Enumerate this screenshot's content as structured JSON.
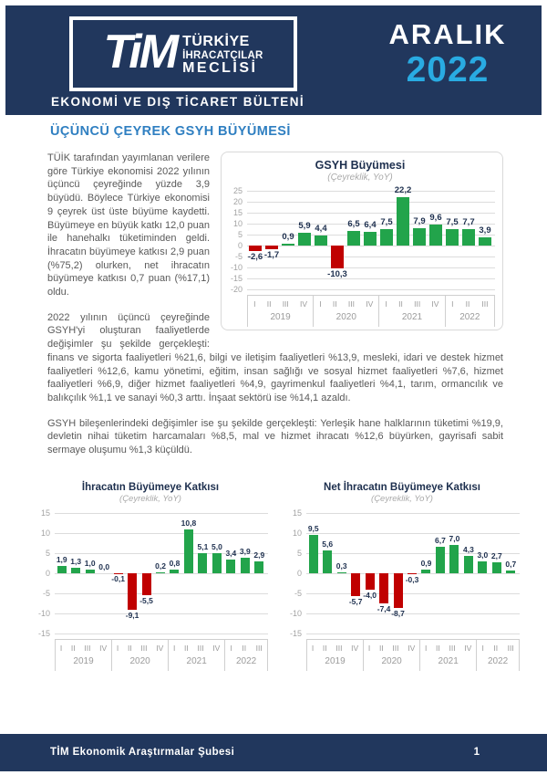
{
  "colors": {
    "navy": "#21375d",
    "cyan": "#29abe2",
    "section_blue": "#2f7fc1",
    "green": "#22a44b",
    "red": "#c00000"
  },
  "header": {
    "logo_acronym": "TiM",
    "logo_line1": "TÜRKİYE",
    "logo_line2": "İHRACATÇILAR",
    "logo_line3": "MECLİSİ",
    "bulletin_title": "EKONOMİ VE DIŞ TİCARET BÜLTENİ",
    "issue_month": "ARALIK",
    "issue_year": "2022"
  },
  "section": {
    "title": "ÜÇÜNCÜ ÇEYREK GSYH BÜYÜMESİ",
    "paragraph1": "TÜİK tarafından yayımlanan verilere göre Türkiye ekonomisi 2022 yılının üçüncü çeyreğinde yüzde 3,9 büyüdü. Böylece Türkiye ekonomisi 9 çeyrek üst üste büyüme kaydetti. Büyümeye en büyük katkı 12,0 puan ile hanehalkı tüketiminden geldi. İhracatın büyümeye katkısı 2,9 puan (%75,2) olurken, net ihracatın büyümeye katkısı 0,7 puan (%17,1) oldu.",
    "paragraph2": "2022 yılının üçüncü çeyreğinde GSYH'yi oluşturan faaliyetlerde değişimler şu şekilde gerçekleşti: finans ve sigorta faaliyetleri %21,6, bilgi ve iletişim faaliyetleri %13,9, mesleki, idari ve destek hizmet faaliyetleri %12,6, kamu yönetimi, eğitim, insan sağlığı ve sosyal hizmet faaliyetleri %7,6, hizmet faaliyetleri %6,9, diğer hizmet faaliyetleri %4,9, gayrimenkul faaliyetleri %4,1, tarım, ormancılık ve balıkçılık %1,1 ve sanayi %0,3 arttı. İnşaat sektörü ise %14,1 azaldı.",
    "paragraph3": "GSYH bileşenlerindeki değişimler ise şu şekilde gerçekleşti: Yerleşik hane halklarının tüketimi %19,9, devletin nihai tüketim harcamaları %8,5, mal ve hizmet ihracatı %12,6 büyürken, gayrisafi sabit sermaye oluşumu %1,3 küçüldü."
  },
  "footer": {
    "text": "TİM Ekonomik Araştırmalar Şubesi",
    "page_number": "1"
  },
  "chart_data": [
    {
      "type": "bar",
      "title": "GSYH Büyümesi",
      "subtitle": "(Çeyreklik, YoY)",
      "ylabel": "",
      "xlabel": "",
      "ylim": [
        -20,
        25
      ],
      "ystep": 5,
      "grid": true,
      "groups": [
        {
          "year": "2019",
          "quarters": [
            "I",
            "II",
            "III",
            "IV"
          ]
        },
        {
          "year": "2020",
          "quarters": [
            "I",
            "II",
            "III",
            "IV"
          ]
        },
        {
          "year": "2021",
          "quarters": [
            "I",
            "II",
            "III",
            "IV"
          ]
        },
        {
          "year": "2022",
          "quarters": [
            "I",
            "II",
            "III"
          ]
        }
      ],
      "values": [
        -2.6,
        -1.7,
        0.9,
        5.9,
        4.4,
        -10.3,
        6.5,
        6.4,
        7.5,
        22.2,
        7.9,
        9.6,
        7.5,
        7.7,
        3.9
      ],
      "value_labels": [
        "-2,6",
        "-1,7",
        "0,9",
        "5,9",
        "4,4",
        "-10,3",
        "6,5",
        "6,4",
        "7,5",
        "22,2",
        "7,9",
        "9,6",
        "7,5",
        "7,7",
        "3,9"
      ],
      "bar_colors": {
        "positive": "#22a44b",
        "negative": "#c00000"
      }
    },
    {
      "type": "bar",
      "title": "İhracatın Büyümeye Katkısı",
      "subtitle": "(Çeyreklik, YoY)",
      "ylabel": "",
      "xlabel": "",
      "ylim": [
        -15,
        15
      ],
      "ystep": 5,
      "grid": true,
      "groups": [
        {
          "year": "2019",
          "quarters": [
            "I",
            "II",
            "III",
            "IV"
          ]
        },
        {
          "year": "2020",
          "quarters": [
            "I",
            "II",
            "III",
            "IV"
          ]
        },
        {
          "year": "2021",
          "quarters": [
            "I",
            "II",
            "III",
            "IV"
          ]
        },
        {
          "year": "2022",
          "quarters": [
            "I",
            "II",
            "III"
          ]
        }
      ],
      "values": [
        1.9,
        1.3,
        1.0,
        0.0,
        -0.1,
        -9.1,
        -5.5,
        0.2,
        0.8,
        10.8,
        5.1,
        5.0,
        3.4,
        3.9,
        2.9
      ],
      "value_labels": [
        "1,9",
        "1,3",
        "1,0",
        "0,0",
        "-0,1",
        "-9,1",
        "-5,5",
        "0,2",
        "0,8",
        "10,8",
        "5,1",
        "5,0",
        "3,4",
        "3,9",
        "2,9"
      ],
      "bar_colors": {
        "positive": "#22a44b",
        "negative": "#c00000"
      }
    },
    {
      "type": "bar",
      "title": "Net İhracatın Büyümeye Katkısı",
      "subtitle": "(Çeyreklik, YoY)",
      "ylabel": "",
      "xlabel": "",
      "ylim": [
        -15,
        15
      ],
      "ystep": 5,
      "grid": true,
      "groups": [
        {
          "year": "2019",
          "quarters": [
            "I",
            "II",
            "III",
            "IV"
          ]
        },
        {
          "year": "2020",
          "quarters": [
            "I",
            "II",
            "III",
            "IV"
          ]
        },
        {
          "year": "2021",
          "quarters": [
            "I",
            "II",
            "III",
            "IV"
          ]
        },
        {
          "year": "2022",
          "quarters": [
            "I",
            "II",
            "III"
          ]
        }
      ],
      "values": [
        9.5,
        5.6,
        0.3,
        -5.7,
        -4.0,
        -7.4,
        -8.7,
        -0.3,
        0.9,
        6.7,
        7.0,
        4.3,
        3.0,
        2.7,
        0.7
      ],
      "value_labels": [
        "9,5",
        "5,6",
        "0,3",
        "-5,7",
        "-4,0",
        "-7,4",
        "-8,7",
        "-0,3",
        "0,9",
        "6,7",
        "7,0",
        "4,3",
        "3,0",
        "2,7",
        "0,7"
      ],
      "bar_colors": {
        "positive": "#22a44b",
        "negative": "#c00000"
      }
    }
  ]
}
